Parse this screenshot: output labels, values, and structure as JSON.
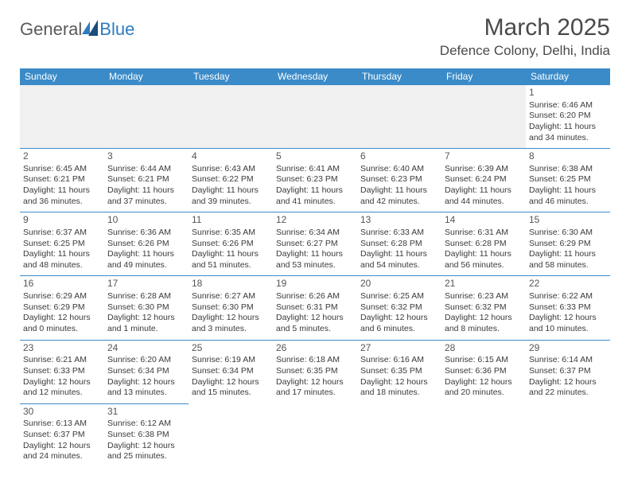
{
  "logo": {
    "text1": "General",
    "text2": "Blue"
  },
  "title": "March 2025",
  "location": "Defence Colony, Delhi, India",
  "dayHeaders": [
    "Sunday",
    "Monday",
    "Tuesday",
    "Wednesday",
    "Thursday",
    "Friday",
    "Saturday"
  ],
  "colors": {
    "headerBg": "#3b8bc8",
    "headerText": "#ffffff",
    "border": "#3b8bc8",
    "logoBlue": "#2e7cc0",
    "titleColor": "#4a4a4a"
  },
  "weeks": [
    [
      {
        "day": "",
        "sunrise": "",
        "sunset": "",
        "daylight": ""
      },
      {
        "day": "",
        "sunrise": "",
        "sunset": "",
        "daylight": ""
      },
      {
        "day": "",
        "sunrise": "",
        "sunset": "",
        "daylight": ""
      },
      {
        "day": "",
        "sunrise": "",
        "sunset": "",
        "daylight": ""
      },
      {
        "day": "",
        "sunrise": "",
        "sunset": "",
        "daylight": ""
      },
      {
        "day": "",
        "sunrise": "",
        "sunset": "",
        "daylight": ""
      },
      {
        "day": "1",
        "sunrise": "Sunrise: 6:46 AM",
        "sunset": "Sunset: 6:20 PM",
        "daylight": "Daylight: 11 hours and 34 minutes."
      }
    ],
    [
      {
        "day": "2",
        "sunrise": "Sunrise: 6:45 AM",
        "sunset": "Sunset: 6:21 PM",
        "daylight": "Daylight: 11 hours and 36 minutes."
      },
      {
        "day": "3",
        "sunrise": "Sunrise: 6:44 AM",
        "sunset": "Sunset: 6:21 PM",
        "daylight": "Daylight: 11 hours and 37 minutes."
      },
      {
        "day": "4",
        "sunrise": "Sunrise: 6:43 AM",
        "sunset": "Sunset: 6:22 PM",
        "daylight": "Daylight: 11 hours and 39 minutes."
      },
      {
        "day": "5",
        "sunrise": "Sunrise: 6:41 AM",
        "sunset": "Sunset: 6:23 PM",
        "daylight": "Daylight: 11 hours and 41 minutes."
      },
      {
        "day": "6",
        "sunrise": "Sunrise: 6:40 AM",
        "sunset": "Sunset: 6:23 PM",
        "daylight": "Daylight: 11 hours and 42 minutes."
      },
      {
        "day": "7",
        "sunrise": "Sunrise: 6:39 AM",
        "sunset": "Sunset: 6:24 PM",
        "daylight": "Daylight: 11 hours and 44 minutes."
      },
      {
        "day": "8",
        "sunrise": "Sunrise: 6:38 AM",
        "sunset": "Sunset: 6:25 PM",
        "daylight": "Daylight: 11 hours and 46 minutes."
      }
    ],
    [
      {
        "day": "9",
        "sunrise": "Sunrise: 6:37 AM",
        "sunset": "Sunset: 6:25 PM",
        "daylight": "Daylight: 11 hours and 48 minutes."
      },
      {
        "day": "10",
        "sunrise": "Sunrise: 6:36 AM",
        "sunset": "Sunset: 6:26 PM",
        "daylight": "Daylight: 11 hours and 49 minutes."
      },
      {
        "day": "11",
        "sunrise": "Sunrise: 6:35 AM",
        "sunset": "Sunset: 6:26 PM",
        "daylight": "Daylight: 11 hours and 51 minutes."
      },
      {
        "day": "12",
        "sunrise": "Sunrise: 6:34 AM",
        "sunset": "Sunset: 6:27 PM",
        "daylight": "Daylight: 11 hours and 53 minutes."
      },
      {
        "day": "13",
        "sunrise": "Sunrise: 6:33 AM",
        "sunset": "Sunset: 6:28 PM",
        "daylight": "Daylight: 11 hours and 54 minutes."
      },
      {
        "day": "14",
        "sunrise": "Sunrise: 6:31 AM",
        "sunset": "Sunset: 6:28 PM",
        "daylight": "Daylight: 11 hours and 56 minutes."
      },
      {
        "day": "15",
        "sunrise": "Sunrise: 6:30 AM",
        "sunset": "Sunset: 6:29 PM",
        "daylight": "Daylight: 11 hours and 58 minutes."
      }
    ],
    [
      {
        "day": "16",
        "sunrise": "Sunrise: 6:29 AM",
        "sunset": "Sunset: 6:29 PM",
        "daylight": "Daylight: 12 hours and 0 minutes."
      },
      {
        "day": "17",
        "sunrise": "Sunrise: 6:28 AM",
        "sunset": "Sunset: 6:30 PM",
        "daylight": "Daylight: 12 hours and 1 minute."
      },
      {
        "day": "18",
        "sunrise": "Sunrise: 6:27 AM",
        "sunset": "Sunset: 6:30 PM",
        "daylight": "Daylight: 12 hours and 3 minutes."
      },
      {
        "day": "19",
        "sunrise": "Sunrise: 6:26 AM",
        "sunset": "Sunset: 6:31 PM",
        "daylight": "Daylight: 12 hours and 5 minutes."
      },
      {
        "day": "20",
        "sunrise": "Sunrise: 6:25 AM",
        "sunset": "Sunset: 6:32 PM",
        "daylight": "Daylight: 12 hours and 6 minutes."
      },
      {
        "day": "21",
        "sunrise": "Sunrise: 6:23 AM",
        "sunset": "Sunset: 6:32 PM",
        "daylight": "Daylight: 12 hours and 8 minutes."
      },
      {
        "day": "22",
        "sunrise": "Sunrise: 6:22 AM",
        "sunset": "Sunset: 6:33 PM",
        "daylight": "Daylight: 12 hours and 10 minutes."
      }
    ],
    [
      {
        "day": "23",
        "sunrise": "Sunrise: 6:21 AM",
        "sunset": "Sunset: 6:33 PM",
        "daylight": "Daylight: 12 hours and 12 minutes."
      },
      {
        "day": "24",
        "sunrise": "Sunrise: 6:20 AM",
        "sunset": "Sunset: 6:34 PM",
        "daylight": "Daylight: 12 hours and 13 minutes."
      },
      {
        "day": "25",
        "sunrise": "Sunrise: 6:19 AM",
        "sunset": "Sunset: 6:34 PM",
        "daylight": "Daylight: 12 hours and 15 minutes."
      },
      {
        "day": "26",
        "sunrise": "Sunrise: 6:18 AM",
        "sunset": "Sunset: 6:35 PM",
        "daylight": "Daylight: 12 hours and 17 minutes."
      },
      {
        "day": "27",
        "sunrise": "Sunrise: 6:16 AM",
        "sunset": "Sunset: 6:35 PM",
        "daylight": "Daylight: 12 hours and 18 minutes."
      },
      {
        "day": "28",
        "sunrise": "Sunrise: 6:15 AM",
        "sunset": "Sunset: 6:36 PM",
        "daylight": "Daylight: 12 hours and 20 minutes."
      },
      {
        "day": "29",
        "sunrise": "Sunrise: 6:14 AM",
        "sunset": "Sunset: 6:37 PM",
        "daylight": "Daylight: 12 hours and 22 minutes."
      }
    ],
    [
      {
        "day": "30",
        "sunrise": "Sunrise: 6:13 AM",
        "sunset": "Sunset: 6:37 PM",
        "daylight": "Daylight: 12 hours and 24 minutes."
      },
      {
        "day": "31",
        "sunrise": "Sunrise: 6:12 AM",
        "sunset": "Sunset: 6:38 PM",
        "daylight": "Daylight: 12 hours and 25 minutes."
      },
      {
        "day": "",
        "sunrise": "",
        "sunset": "",
        "daylight": ""
      },
      {
        "day": "",
        "sunrise": "",
        "sunset": "",
        "daylight": ""
      },
      {
        "day": "",
        "sunrise": "",
        "sunset": "",
        "daylight": ""
      },
      {
        "day": "",
        "sunrise": "",
        "sunset": "",
        "daylight": ""
      },
      {
        "day": "",
        "sunrise": "",
        "sunset": "",
        "daylight": ""
      }
    ]
  ]
}
